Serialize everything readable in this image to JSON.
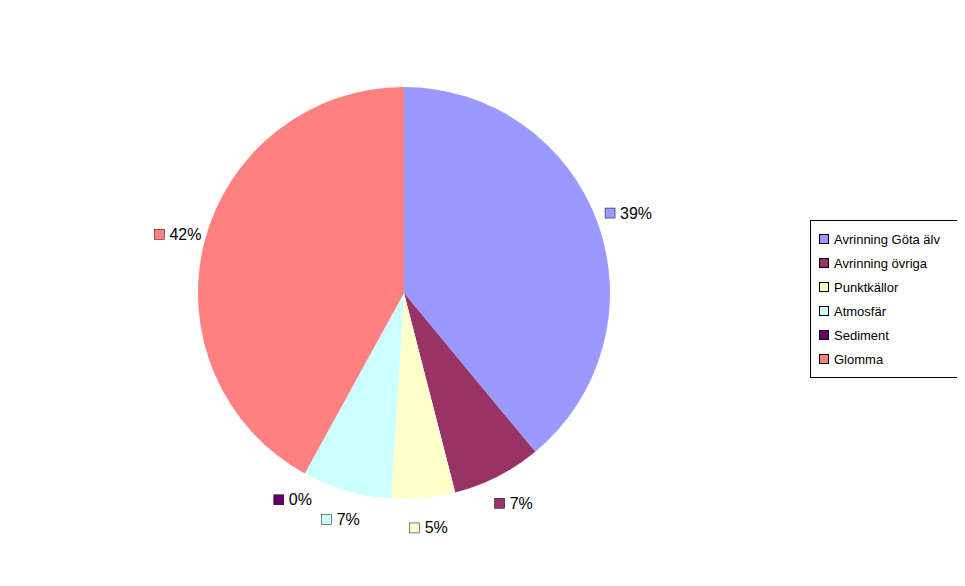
{
  "chart_data": {
    "type": "pie",
    "categories": [
      "Avrinning Göta älv",
      "Avrinning övriga",
      "Punktkällor",
      "Atmosfär",
      "Sediment",
      "Glomma"
    ],
    "values": [
      39,
      7,
      5,
      7,
      0,
      42
    ],
    "value_labels": [
      "39%",
      "7%",
      "5%",
      "7%",
      "0%",
      "42%"
    ],
    "colors": [
      "#9999ff",
      "#993366",
      "#ffffcc",
      "#ccffff",
      "#660066",
      "#ff8080"
    ],
    "data_labels": true,
    "legend": "right"
  }
}
